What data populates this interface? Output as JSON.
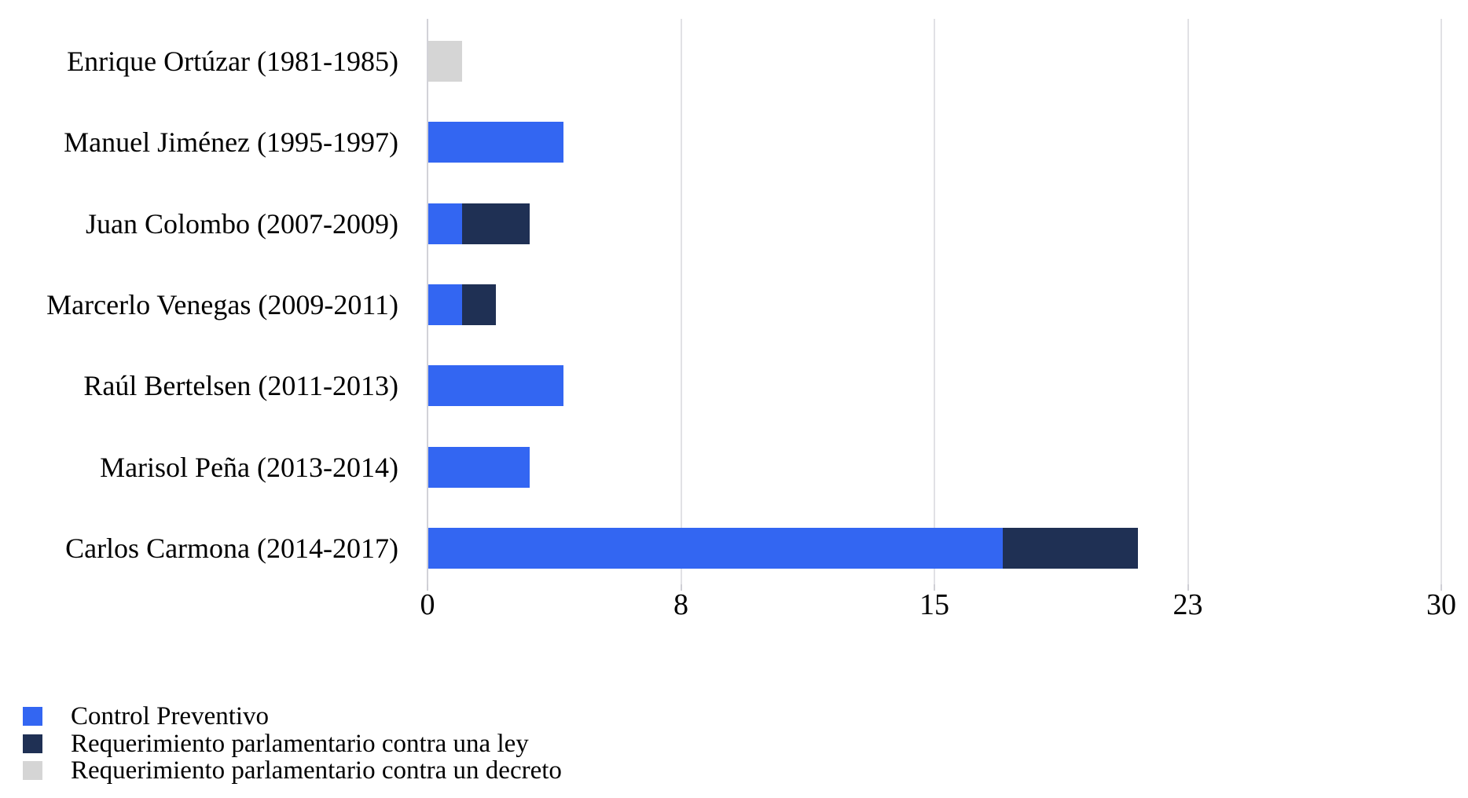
{
  "chart_data": {
    "type": "bar",
    "orientation": "horizontal",
    "stacked": true,
    "title": "",
    "xlabel": "",
    "ylabel": "",
    "grid": true,
    "legend_position": "bottom-left",
    "categories": [
      "Enrique Ortúzar (1981-1985)",
      "Manuel Jiménez (1995-1997)",
      "Juan Colombo (2007-2009)",
      "Marcerlo Venegas (2009-2011)",
      "Raúl Bertelsen (2011-2013)",
      "Marisol Peña (2013-2014)",
      "Carlos Carmona (2014-2017)"
    ],
    "series": [
      {
        "name": "Control Preventivo",
        "color": "#3366f2",
        "values": [
          0,
          4,
          1,
          1,
          4,
          3,
          17
        ]
      },
      {
        "name": "Requerimiento parlamentario contra una ley",
        "color": "#1f3054",
        "values": [
          0,
          0,
          2,
          1,
          0,
          0,
          4
        ]
      },
      {
        "name": "Requerimiento parlamentario contra un decreto",
        "color": "#d5d5d5",
        "values": [
          1,
          0,
          0,
          0,
          0,
          0,
          0
        ]
      }
    ],
    "x_axis": {
      "min": 0,
      "max": 30,
      "tick_values": [
        0,
        7.5,
        15,
        22.5,
        30
      ],
      "tick_labels": [
        "0",
        "8",
        "15",
        "23",
        "30"
      ]
    },
    "colors": {
      "background": "#ffffff",
      "gridline": "#e1e1e5",
      "axis_line": "#d2d2d8",
      "text": "#000000"
    }
  }
}
